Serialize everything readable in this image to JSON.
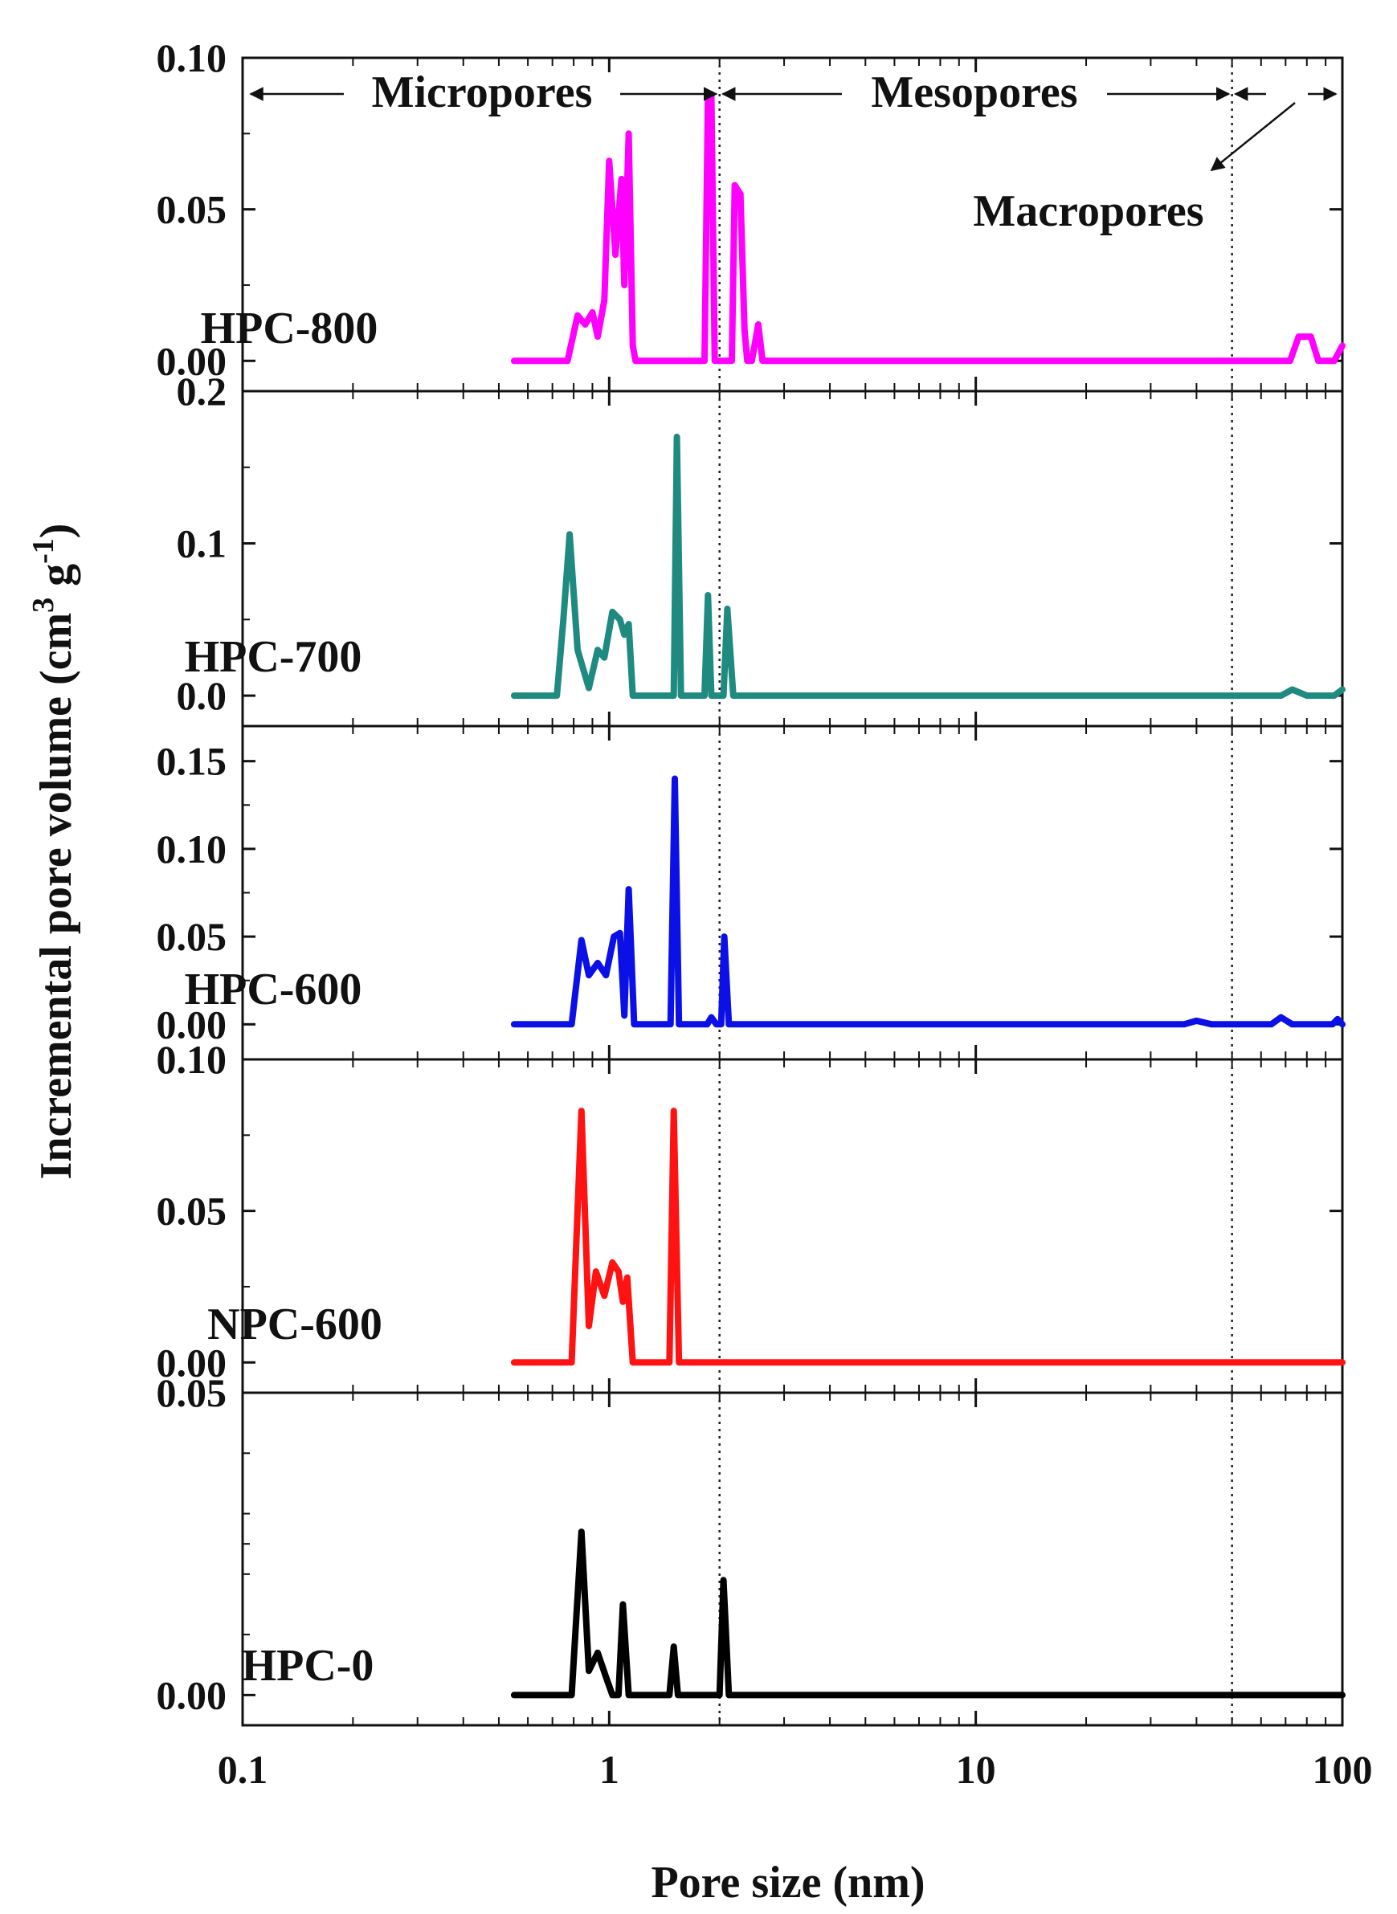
{
  "chart_data": {
    "type": "line",
    "xscale": "log",
    "xlim": [
      0.1,
      100
    ],
    "x_ticks": [
      0.1,
      1,
      10,
      100
    ],
    "x_tick_labels": [
      "0.1",
      "1",
      "10",
      "100"
    ],
    "xlabel": "Pore size (nm)",
    "ylabel_main": "Incremental pore volume (cm",
    "ylabel_sup1": "3",
    "ylabel_mid": " g",
    "ylabel_sup2": "-1",
    "ylabel_end": ")",
    "region_lines": [
      2,
      50
    ],
    "regions": {
      "micropores": "Micropores",
      "mesopores": "Mesopores",
      "macropores": "Macropores"
    },
    "panels": [
      {
        "name": "HPC-800",
        "color": "#ff00ff",
        "ylim": [
          -0.01,
          0.1
        ],
        "y_ticks": [
          0.0,
          0.05,
          0.1
        ],
        "y_tick_labels": [
          "0.00",
          "0.05",
          "0.10"
        ],
        "points": [
          [
            0.55,
            0.0
          ],
          [
            0.77,
            0.0
          ],
          [
            0.82,
            0.015
          ],
          [
            0.86,
            0.012
          ],
          [
            0.9,
            0.016
          ],
          [
            0.93,
            0.008
          ],
          [
            0.97,
            0.02
          ],
          [
            1.0,
            0.066
          ],
          [
            1.04,
            0.035
          ],
          [
            1.08,
            0.06
          ],
          [
            1.1,
            0.025
          ],
          [
            1.13,
            0.075
          ],
          [
            1.16,
            0.005
          ],
          [
            1.18,
            0.0
          ],
          [
            1.82,
            0.0
          ],
          [
            1.86,
            0.088
          ],
          [
            1.9,
            0.088
          ],
          [
            1.94,
            0.0
          ],
          [
            2.16,
            0.0
          ],
          [
            2.2,
            0.058
          ],
          [
            2.28,
            0.055
          ],
          [
            2.34,
            0.01
          ],
          [
            2.38,
            0.0
          ],
          [
            2.45,
            0.0
          ],
          [
            2.55,
            0.012
          ],
          [
            2.62,
            0.0
          ],
          [
            72,
            0.0
          ],
          [
            76,
            0.008
          ],
          [
            82,
            0.008
          ],
          [
            86,
            0.0
          ],
          [
            95,
            0.0
          ],
          [
            100,
            0.005
          ]
        ]
      },
      {
        "name": "HPC-700",
        "color": "#1f8a80",
        "ylim": [
          -0.02,
          0.2
        ],
        "y_ticks": [
          0.0,
          0.1,
          0.2
        ],
        "y_tick_labels": [
          "0.0",
          "0.1",
          "0.2"
        ],
        "points": [
          [
            0.55,
            0.0
          ],
          [
            0.72,
            0.0
          ],
          [
            0.75,
            0.05
          ],
          [
            0.78,
            0.106
          ],
          [
            0.82,
            0.03
          ],
          [
            0.88,
            0.005
          ],
          [
            0.93,
            0.03
          ],
          [
            0.97,
            0.025
          ],
          [
            1.02,
            0.055
          ],
          [
            1.07,
            0.05
          ],
          [
            1.1,
            0.04
          ],
          [
            1.13,
            0.047
          ],
          [
            1.16,
            0.0
          ],
          [
            1.5,
            0.0
          ],
          [
            1.53,
            0.17
          ],
          [
            1.57,
            0.0
          ],
          [
            1.82,
            0.0
          ],
          [
            1.86,
            0.066
          ],
          [
            1.9,
            0.0
          ],
          [
            2.05,
            0.0
          ],
          [
            2.1,
            0.057
          ],
          [
            2.18,
            0.0
          ],
          [
            68,
            0.0
          ],
          [
            73,
            0.004
          ],
          [
            80,
            0.0
          ],
          [
            95,
            0.0
          ],
          [
            100,
            0.004
          ]
        ]
      },
      {
        "name": "HPC-600",
        "color": "#0a10e6",
        "ylim": [
          -0.02,
          0.17
        ],
        "y_ticks": [
          0.0,
          0.05,
          0.1,
          0.15
        ],
        "y_tick_labels": [
          "0.00",
          "0.05",
          "0.10",
          "0.15"
        ],
        "points": [
          [
            0.55,
            0.0
          ],
          [
            0.79,
            0.0
          ],
          [
            0.84,
            0.048
          ],
          [
            0.88,
            0.028
          ],
          [
            0.93,
            0.035
          ],
          [
            0.98,
            0.028
          ],
          [
            1.03,
            0.05
          ],
          [
            1.07,
            0.052
          ],
          [
            1.1,
            0.005
          ],
          [
            1.13,
            0.077
          ],
          [
            1.17,
            0.0
          ],
          [
            1.47,
            0.0
          ],
          [
            1.51,
            0.14
          ],
          [
            1.55,
            0.0
          ],
          [
            1.85,
            0.0
          ],
          [
            1.9,
            0.004
          ],
          [
            1.96,
            0.0
          ],
          [
            2.02,
            0.0
          ],
          [
            2.06,
            0.05
          ],
          [
            2.12,
            0.0
          ],
          [
            37,
            0.0
          ],
          [
            40,
            0.002
          ],
          [
            44,
            0.0
          ],
          [
            64,
            0.0
          ],
          [
            68,
            0.004
          ],
          [
            73,
            0.0
          ],
          [
            94,
            0.0
          ],
          [
            97,
            0.003
          ],
          [
            100,
            0.0
          ]
        ]
      },
      {
        "name": "NPC-600",
        "color": "#ff1212",
        "ylim": [
          -0.01,
          0.1
        ],
        "y_ticks": [
          0.0,
          0.05,
          0.1
        ],
        "y_tick_labels": [
          "0.00",
          "0.05",
          "0.10"
        ],
        "points": [
          [
            0.55,
            0.0
          ],
          [
            0.79,
            0.0
          ],
          [
            0.84,
            0.083
          ],
          [
            0.88,
            0.012
          ],
          [
            0.92,
            0.03
          ],
          [
            0.97,
            0.022
          ],
          [
            1.02,
            0.033
          ],
          [
            1.06,
            0.03
          ],
          [
            1.09,
            0.02
          ],
          [
            1.12,
            0.028
          ],
          [
            1.16,
            0.0
          ],
          [
            1.46,
            0.0
          ],
          [
            1.5,
            0.083
          ],
          [
            1.55,
            0.0
          ],
          [
            100,
            0.0
          ]
        ]
      },
      {
        "name": "HPC-0",
        "color": "#000000",
        "ylim": [
          -0.005,
          0.05
        ],
        "y_ticks": [
          0.0,
          0.05
        ],
        "y_tick_labels": [
          "0.00",
          "0.05"
        ],
        "y_minor_ticks": [
          0.01,
          0.02,
          0.03,
          0.04
        ],
        "points": [
          [
            0.55,
            0.0
          ],
          [
            0.79,
            0.0
          ],
          [
            0.84,
            0.027
          ],
          [
            0.88,
            0.004
          ],
          [
            0.93,
            0.007
          ],
          [
            0.98,
            0.003
          ],
          [
            1.02,
            0.0
          ],
          [
            1.06,
            0.0
          ],
          [
            1.09,
            0.015
          ],
          [
            1.13,
            0.0
          ],
          [
            1.46,
            0.0
          ],
          [
            1.5,
            0.008
          ],
          [
            1.54,
            0.0
          ],
          [
            1.95,
            0.0
          ],
          [
            2.0,
            0.0
          ],
          [
            2.05,
            0.019
          ],
          [
            2.12,
            0.0
          ],
          [
            100,
            0.0
          ]
        ]
      }
    ]
  }
}
